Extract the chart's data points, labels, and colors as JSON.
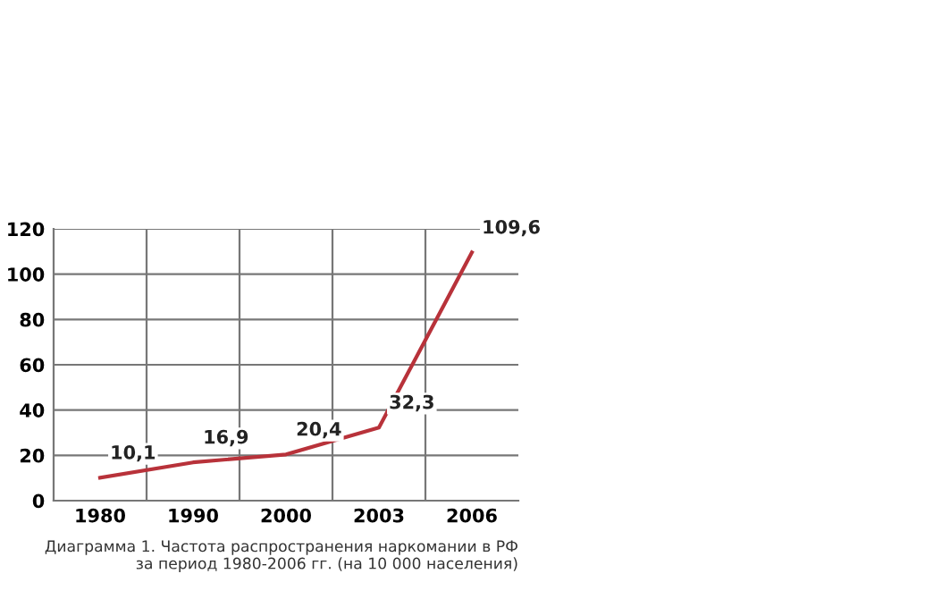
{
  "chart_data": {
    "type": "line",
    "categories": [
      "1980",
      "1990",
      "2000",
      "2003",
      "2006"
    ],
    "series": [
      {
        "color": "#b8323a",
        "values": [
          10.1,
          16.9,
          20.4,
          32.3,
          109.6
        ],
        "value_labels": [
          "10,1",
          "16,9",
          "20,4",
          "32,3",
          "109,6"
        ]
      }
    ],
    "ylim": [
      0,
      120
    ],
    "yticks": [
      0,
      20,
      40,
      60,
      80,
      100,
      120
    ],
    "grid": true,
    "marker": "none",
    "line_style": "solid",
    "annotations": [
      "Диаграмма 1. Частота распространения наркомании в РФ\nза период 1980-2006 гг. (на 10 000 населения)"
    ]
  }
}
